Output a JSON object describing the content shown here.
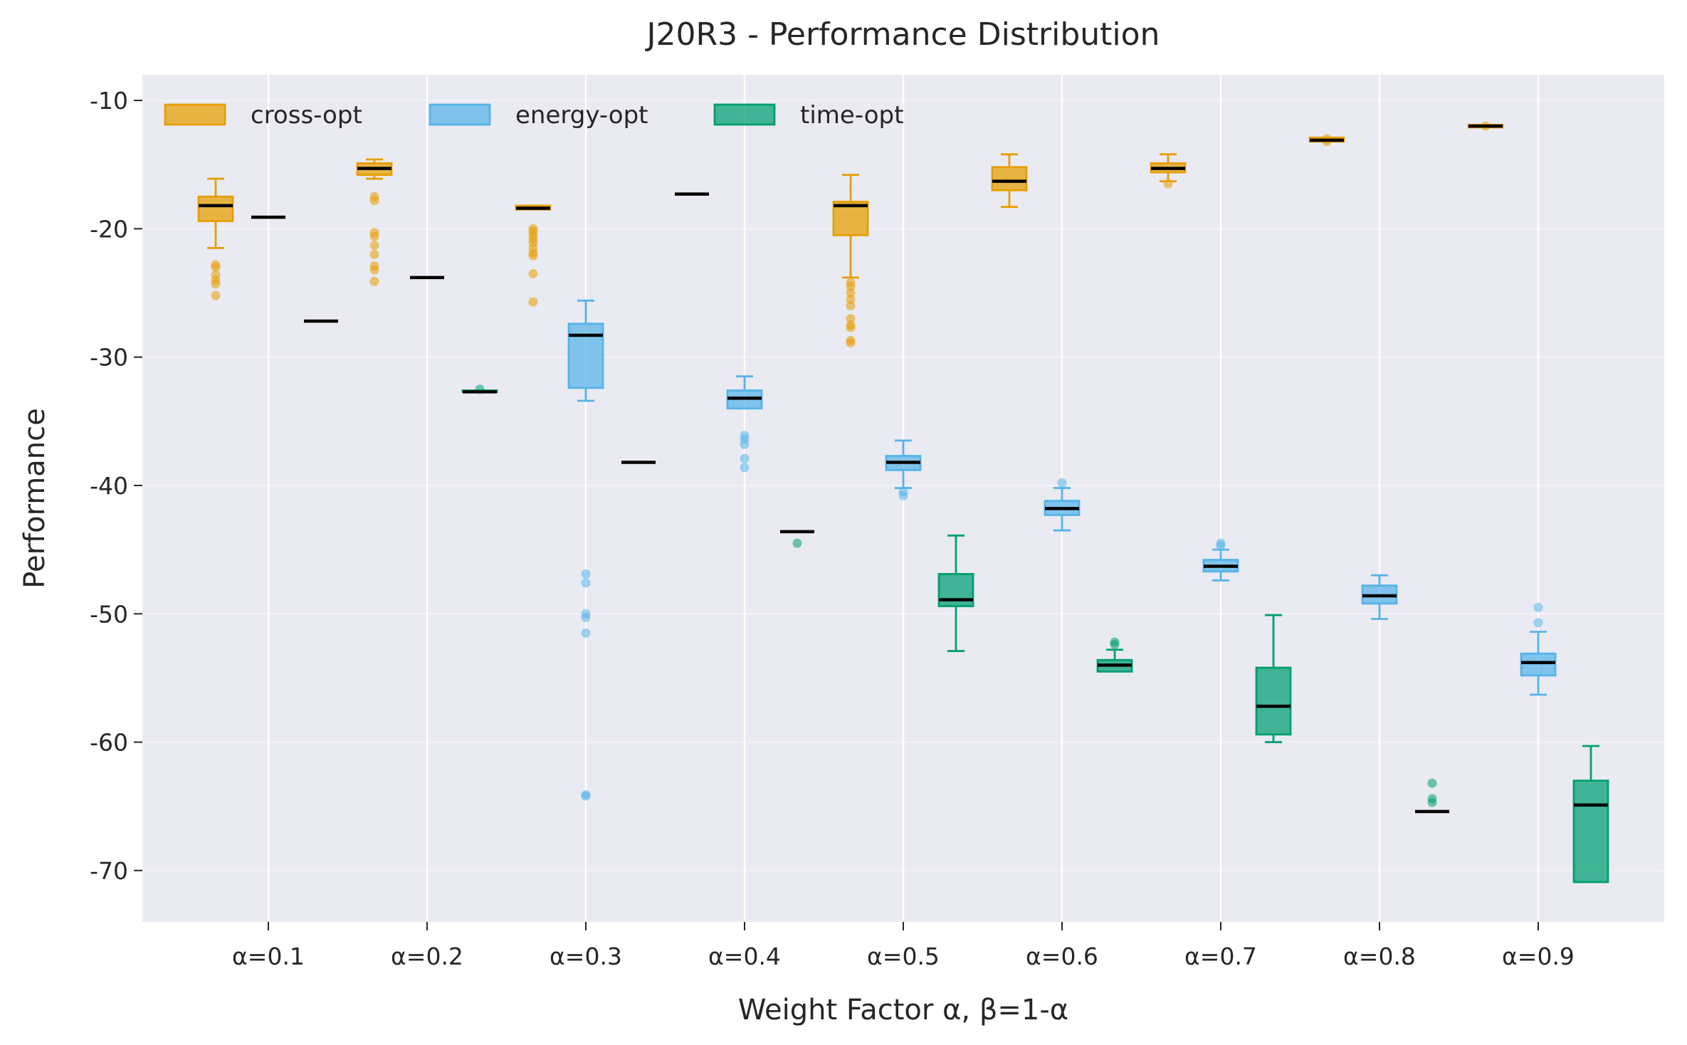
{
  "chart_data": {
    "type": "box",
    "title": "J20R3 - Performance Distribution",
    "xlabel": "Weight Factor α, β=1-α",
    "ylabel": "Performance",
    "categories": [
      "α=0.1",
      "α=0.2",
      "α=0.3",
      "α=0.4",
      "α=0.5",
      "α=0.6",
      "α=0.7",
      "α=0.8",
      "α=0.9"
    ],
    "ylim": [
      -74,
      -8
    ],
    "yticks": [
      -10,
      -20,
      -30,
      -40,
      -50,
      -60,
      -70
    ],
    "ytick_labels": [
      "-10",
      "-20",
      "-30",
      "-40",
      "-50",
      "-60",
      "-70"
    ],
    "grid": true,
    "legend_position": "top-left",
    "colors": {
      "background": "#eaeaf2",
      "grid": "#ffffff",
      "median": "#000000",
      "cross-opt": "#e69f00",
      "energy-opt": "#56b4e9",
      "time-opt": "#009e73"
    },
    "series": [
      {
        "name": "cross-opt",
        "boxes": [
          {
            "q1": -19.4,
            "median": -18.2,
            "q3": -17.5,
            "whisker_low": -21.5,
            "whisker_high": -16.1,
            "outliers": [
              -22.8,
              -23.0,
              -23.6,
              -24.0,
              -24.3,
              -25.2
            ]
          },
          {
            "q1": -15.8,
            "median": -15.3,
            "q3": -14.9,
            "whisker_low": -16.1,
            "whisker_high": -14.6,
            "outliers": [
              -17.5,
              -17.8,
              -20.3,
              -20.6,
              -21.3,
              -22.0,
              -22.9,
              -23.2,
              -24.1
            ]
          },
          {
            "q1": -18.5,
            "median": -18.4,
            "q3": -18.2,
            "whisker_low": -18.5,
            "whisker_high": -18.2,
            "outliers": [
              -20.0,
              -20.2,
              -20.5,
              -20.8,
              -21.1,
              -21.5,
              -21.9,
              -22.1,
              -23.5,
              -25.7
            ]
          },
          {
            "q1": -17.3,
            "median": -17.3,
            "q3": -17.3,
            "whisker_low": -17.3,
            "whisker_high": -17.3,
            "outliers": []
          },
          {
            "q1": -20.5,
            "median": -18.2,
            "q3": -17.9,
            "whisker_low": -23.8,
            "whisker_high": -15.8,
            "outliers": [
              -24.2,
              -24.5,
              -25.0,
              -25.5,
              -26.0,
              -27.0,
              -27.5,
              -27.7,
              -28.7,
              -28.9
            ]
          },
          {
            "q1": -17.0,
            "median": -16.3,
            "q3": -15.2,
            "whisker_low": -18.3,
            "whisker_high": -14.2,
            "outliers": []
          },
          {
            "q1": -15.6,
            "median": -15.3,
            "q3": -14.9,
            "whisker_low": -16.3,
            "whisker_high": -14.2,
            "outliers": [
              -16.5
            ]
          },
          {
            "q1": -13.2,
            "median": -13.1,
            "q3": -12.9,
            "whisker_low": -13.2,
            "whisker_high": -12.9,
            "outliers": [
              -13.0,
              -13.2
            ]
          },
          {
            "q1": -12.1,
            "median": -12.0,
            "q3": -11.9,
            "whisker_low": -12.1,
            "whisker_high": -11.9,
            "outliers": [
              -12.0
            ]
          }
        ]
      },
      {
        "name": "energy-opt",
        "boxes": [
          {
            "q1": -19.1,
            "median": -19.1,
            "q3": -19.1,
            "whisker_low": -19.1,
            "whisker_high": -19.1,
            "outliers": []
          },
          {
            "q1": -23.8,
            "median": -23.8,
            "q3": -23.8,
            "whisker_low": -23.8,
            "whisker_high": -23.8,
            "outliers": []
          },
          {
            "q1": -32.4,
            "median": -28.3,
            "q3": -27.4,
            "whisker_low": -33.4,
            "whisker_high": -25.6,
            "outliers": [
              -46.9,
              -47.6,
              -50.0,
              -50.3,
              -51.5,
              -64.1,
              -64.2
            ]
          },
          {
            "q1": -34.0,
            "median": -33.2,
            "q3": -32.6,
            "whisker_low": -34.0,
            "whisker_high": -31.5,
            "outliers": [
              -36.1,
              -36.4,
              -36.8,
              -37.9,
              -38.6
            ]
          },
          {
            "q1": -38.8,
            "median": -38.2,
            "q3": -37.7,
            "whisker_low": -40.2,
            "whisker_high": -36.5,
            "outliers": [
              -40.5,
              -40.8
            ]
          },
          {
            "q1": -42.3,
            "median": -41.8,
            "q3": -41.2,
            "whisker_low": -43.5,
            "whisker_high": -40.2,
            "outliers": [
              -39.8
            ]
          },
          {
            "q1": -46.7,
            "median": -46.3,
            "q3": -45.8,
            "whisker_low": -47.4,
            "whisker_high": -45.0,
            "outliers": [
              -44.5,
              -44.7
            ]
          },
          {
            "q1": -49.2,
            "median": -48.6,
            "q3": -47.8,
            "whisker_low": -50.4,
            "whisker_high": -47.0,
            "outliers": []
          },
          {
            "q1": -54.8,
            "median": -53.8,
            "q3": -53.1,
            "whisker_low": -56.3,
            "whisker_high": -51.4,
            "outliers": [
              -49.5,
              -50.7
            ]
          }
        ]
      },
      {
        "name": "time-opt",
        "boxes": [
          {
            "q1": -27.2,
            "median": -27.2,
            "q3": -27.2,
            "whisker_low": -27.2,
            "whisker_high": -27.2,
            "outliers": []
          },
          {
            "q1": -32.7,
            "median": -32.7,
            "q3": -32.6,
            "whisker_low": -32.7,
            "whisker_high": -32.6,
            "outliers": [
              -32.5
            ]
          },
          {
            "q1": -38.2,
            "median": -38.2,
            "q3": -38.2,
            "whisker_low": -38.2,
            "whisker_high": -38.2,
            "outliers": []
          },
          {
            "q1": -43.6,
            "median": -43.6,
            "q3": -43.6,
            "whisker_low": -43.6,
            "whisker_high": -43.6,
            "outliers": [
              -44.5
            ]
          },
          {
            "q1": -49.4,
            "median": -48.9,
            "q3": -46.9,
            "whisker_low": -52.9,
            "whisker_high": -43.9,
            "outliers": []
          },
          {
            "q1": -54.5,
            "median": -54.0,
            "q3": -53.6,
            "whisker_low": -54.5,
            "whisker_high": -52.8,
            "outliers": [
              -52.2,
              -52.4
            ]
          },
          {
            "q1": -59.4,
            "median": -57.2,
            "q3": -54.2,
            "whisker_low": -60.0,
            "whisker_high": -50.1,
            "outliers": []
          },
          {
            "q1": -65.4,
            "median": -65.4,
            "q3": -65.4,
            "whisker_low": -65.4,
            "whisker_high": -65.4,
            "outliers": [
              -63.2,
              -64.4,
              -64.7
            ]
          },
          {
            "q1": -70.9,
            "median": -64.9,
            "q3": -63.0,
            "whisker_low": -70.9,
            "whisker_high": -60.3,
            "outliers": []
          }
        ]
      }
    ]
  }
}
